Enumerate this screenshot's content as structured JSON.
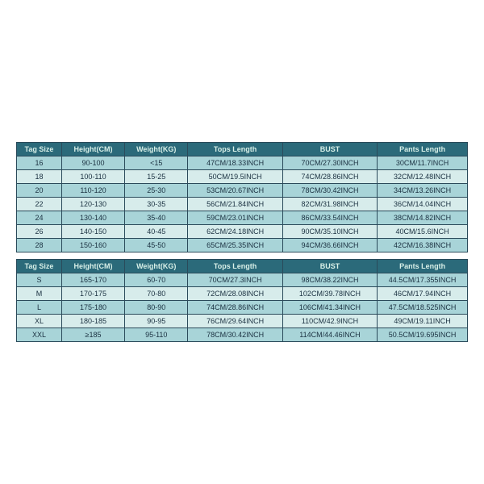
{
  "colors": {
    "header_bg": "#2b6a7a",
    "header_text": "#d8f0e8",
    "row_alt_a": "#a8d4d8",
    "row_alt_b": "#d7eceb",
    "border": "#2a4a5a",
    "cell_text": "#1a3040",
    "page_bg": "#ffffff"
  },
  "tables": [
    {
      "columns": [
        "Tag Size",
        "Height(CM)",
        "Weight(KG)",
        "Tops Length",
        "BUST",
        "Pants Length"
      ],
      "rows": [
        [
          "16",
          "90-100",
          "<15",
          "47CM/18.33INCH",
          "70CM/27.30INCH",
          "30CM/11.7INCH"
        ],
        [
          "18",
          "100-110",
          "15-25",
          "50CM/19.5INCH",
          "74CM/28.86INCH",
          "32CM/12.48INCH"
        ],
        [
          "20",
          "110-120",
          "25-30",
          "53CM/20.67INCH",
          "78CM/30.42INCH",
          "34CM/13.26INCH"
        ],
        [
          "22",
          "120-130",
          "30-35",
          "56CM/21.84INCH",
          "82CM/31.98INCH",
          "36CM/14.04INCH"
        ],
        [
          "24",
          "130-140",
          "35-40",
          "59CM/23.01INCH",
          "86CM/33.54INCH",
          "38CM/14.82INCH"
        ],
        [
          "26",
          "140-150",
          "40-45",
          "62CM/24.18INCH",
          "90CM/35.10INCH",
          "40CM/15.6INCH"
        ],
        [
          "28",
          "150-160",
          "45-50",
          "65CM/25.35INCH",
          "94CM/36.66INCH",
          "42CM/16.38INCH"
        ]
      ]
    },
    {
      "columns": [
        "Tag Size",
        "Height(CM)",
        "Weight(KG)",
        "Tops Length",
        "BUST",
        "Pants Length"
      ],
      "rows": [
        [
          "S",
          "165-170",
          "60-70",
          "70CM/27.3INCH",
          "98CM/38.22INCH",
          "44.5CM/17.355INCH"
        ],
        [
          "M",
          "170-175",
          "70-80",
          "72CM/28.08INCH",
          "102CM/39.78INCH",
          "46CM/17.94INCH"
        ],
        [
          "L",
          "175-180",
          "80-90",
          "74CM/28.86INCH",
          "106CM/41.34INCH",
          "47.5CM/18.525INCH"
        ],
        [
          "XL",
          "180-185",
          "90-95",
          "76CM/29.64INCH",
          "110CM/42.9INCH",
          "49CM/19.11INCH"
        ],
        [
          "XXL",
          "≥185",
          "95-110",
          "78CM/30.42INCH",
          "114CM/44.46INCH",
          "50.5CM/19.695INCH"
        ]
      ]
    }
  ]
}
